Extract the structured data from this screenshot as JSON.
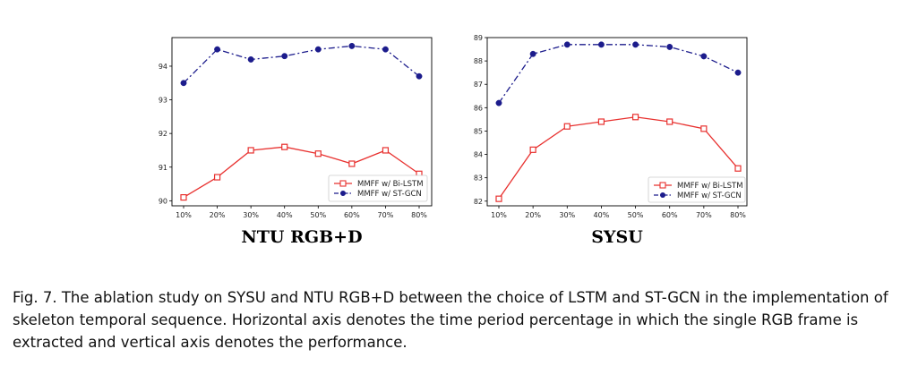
{
  "caption": "Fig. 7. The ablation study on SYSU and NTU RGB+D between the choice of LSTM and ST-GCN in the implementation of skeleton temporal sequence. Horizontal axis denotes the time period percentage in which the single RGB frame is extracted and vertical axis denotes the performance.",
  "chart_data": [
    {
      "type": "line",
      "title": "NTU RGB+D",
      "xlabel": "",
      "ylabel": "",
      "categories": [
        "10%",
        "20%",
        "30%",
        "40%",
        "50%",
        "60%",
        "70%",
        "80%"
      ],
      "ylim": [
        89.85,
        94.85
      ],
      "yticks": [
        90,
        91,
        92,
        93,
        94
      ],
      "grid": false,
      "legend": "lower-right",
      "series": [
        {
          "name": "MMFF w/ Bi-LSTM",
          "values": [
            90.1,
            90.7,
            91.5,
            91.6,
            91.4,
            91.1,
            91.5,
            90.8
          ],
          "color": "#e8312f",
          "marker": "open-square",
          "line": "solid"
        },
        {
          "name": "MMFF w/ ST-GCN",
          "values": [
            93.5,
            94.5,
            94.2,
            94.3,
            94.5,
            94.6,
            94.5,
            93.7
          ],
          "color": "#1c1c8c",
          "marker": "filled-circle",
          "line": "dashdot"
        }
      ]
    },
    {
      "type": "line",
      "title": "SYSU",
      "xlabel": "",
      "ylabel": "",
      "categories": [
        "10%",
        "20%",
        "30%",
        "40%",
        "50%",
        "60%",
        "70%",
        "80%"
      ],
      "ylim": [
        81.8,
        89.0
      ],
      "yticks": [
        82,
        83,
        84,
        85,
        86,
        87,
        88,
        89
      ],
      "grid": false,
      "legend": "lower-right",
      "series": [
        {
          "name": "MMFF w/ Bi-LSTM",
          "values": [
            82.1,
            84.2,
            85.2,
            85.4,
            85.6,
            85.4,
            85.1,
            83.4
          ],
          "color": "#e8312f",
          "marker": "open-square",
          "line": "solid"
        },
        {
          "name": "MMFF w/ ST-GCN",
          "values": [
            86.2,
            88.3,
            88.7,
            88.7,
            88.7,
            88.6,
            88.2,
            87.5
          ],
          "color": "#1c1c8c",
          "marker": "filled-circle",
          "line": "dashdot"
        }
      ]
    }
  ]
}
